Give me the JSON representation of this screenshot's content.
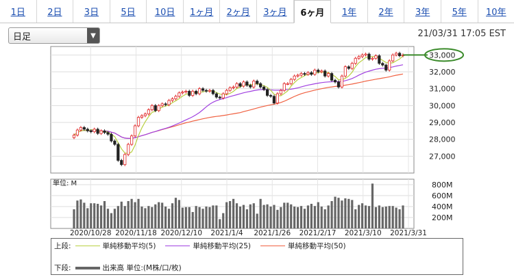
{
  "tabs": [
    "1日",
    "2日",
    "3日",
    "5日",
    "10日",
    "1ヶ月",
    "2ヶ月",
    "3ヶ月",
    "6ヶ月",
    "1年",
    "2年",
    "3年",
    "5年",
    "10年"
  ],
  "active_tab_index": 8,
  "dropdown": {
    "selected": "日足"
  },
  "timestamp": "21/03/31 17:05 EST",
  "legend": {
    "upper_label": "上段:",
    "lower_label": "下段:",
    "ma5": "単純移動平均(5)",
    "ma25": "単純移動平均(25)",
    "ma50": "単純移動平均(50)",
    "volume": "出来高 単位:(M株/口/枚)"
  },
  "colors": {
    "up": "#e02020",
    "down": "#222222",
    "ma5": "#b8d040",
    "ma25": "#a040e0",
    "ma50": "#f06040",
    "volume": "#666666",
    "marker": "#3a8a2a"
  },
  "chart_data": {
    "type": "candlestick",
    "price_axis": {
      "ticks": [
        "27,000",
        "28,000",
        "29,000",
        "30,000",
        "31,000",
        "32,000",
        "33,000"
      ],
      "highlight": "33,000",
      "ylim": [
        26000,
        33500
      ]
    },
    "volume_axis": {
      "unit_label": "単位: M",
      "ticks": [
        "200M",
        "400M",
        "600M",
        "800M"
      ],
      "ylim": [
        0,
        900
      ]
    },
    "x_labels": [
      "2020/10/28",
      "2020/11/18",
      "2020/12/10",
      "2021/1/4",
      "2021/1/26",
      "2021/2/17",
      "2021/3/10",
      "2021/3/31"
    ],
    "close": [
      28250,
      28550,
      28700,
      28600,
      28500,
      28450,
      28600,
      28350,
      28500,
      28400,
      28300,
      27900,
      27700,
      26750,
      26500,
      27100,
      27700,
      28200,
      28800,
      29300,
      29400,
      29500,
      29750,
      30000,
      29700,
      30000,
      30100,
      30050,
      30300,
      30400,
      30550,
      30750,
      30800,
      30850,
      30600,
      30850,
      30700,
      31000,
      30900,
      30850,
      30900,
      30700,
      30500,
      30450,
      30700,
      30900,
      31050,
      31100,
      31300,
      31150,
      31400,
      31200,
      31100,
      31450,
      31300,
      31100,
      30950,
      30600,
      30550,
      30150,
      30700,
      30900,
      31300,
      31300,
      31550,
      31750,
      31800,
      31900,
      31850,
      31950,
      31850,
      32100,
      32000,
      32050,
      31750,
      31900,
      31500,
      31400,
      31100,
      31750,
      32300,
      32200,
      32500,
      32800,
      32900,
      33000,
      33050,
      32750,
      32800,
      32950,
      32500,
      32400,
      32100,
      32650,
      33000,
      33100,
      32950,
      33000
    ],
    "volume": [
      350,
      510,
      530,
      470,
      370,
      460,
      460,
      450,
      420,
      500,
      360,
      280,
      360,
      410,
      490,
      410,
      500,
      540,
      480,
      540,
      400,
      370,
      410,
      390,
      440,
      480,
      470,
      400,
      360,
      460,
      560,
      520,
      380,
      390,
      390,
      300,
      410,
      390,
      360,
      400,
      390,
      420,
      420,
      170,
      280,
      480,
      500,
      540,
      460,
      400,
      430,
      350,
      440,
      460,
      270,
      540,
      430,
      440,
      400,
      430,
      340,
      390,
      470,
      470,
      440,
      400,
      390,
      410,
      360,
      420,
      450,
      410,
      480,
      400,
      350,
      420,
      500,
      580,
      560,
      510,
      550,
      540,
      520,
      350,
      430,
      460,
      420,
      410,
      820,
      390,
      420,
      390,
      400,
      410,
      410,
      380,
      350,
      420
    ]
  }
}
